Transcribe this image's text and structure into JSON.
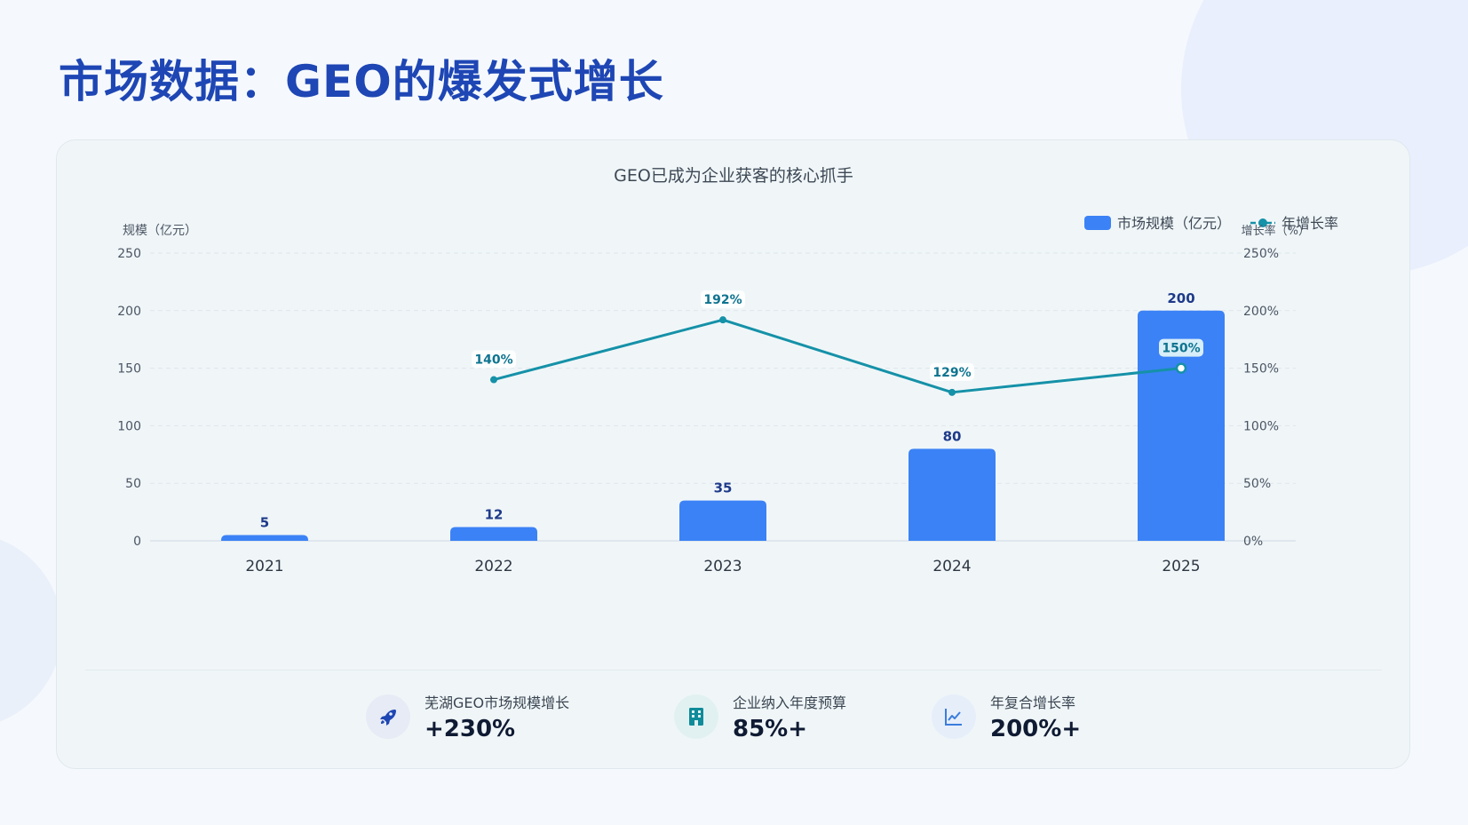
{
  "title": "市场数据：GEO的爆发式增长",
  "colors": {
    "title": "#1e46b4",
    "bar": "#3b82f6",
    "line": "#1591a8",
    "bar_label": "#1e3a8a",
    "line_label": "#0e7490"
  },
  "chart_data": {
    "type": "bar",
    "title": "GEO已成为企业获客的核心抓手",
    "categories": [
      "2021",
      "2022",
      "2023",
      "2024",
      "2025"
    ],
    "ylabel": "规模（亿元）",
    "y2label": "增长率（%）",
    "ylim": [
      0,
      250
    ],
    "y2lim": [
      0,
      250
    ],
    "yticks": [
      "0",
      "50",
      "100",
      "150",
      "200",
      "250"
    ],
    "y2ticks": [
      "0%",
      "50%",
      "100%",
      "150%",
      "200%",
      "250%"
    ],
    "grid": true,
    "legend_position": "top-right",
    "series": [
      {
        "name": "市场规模（亿元）",
        "type": "bar",
        "axis": "left",
        "values": [
          5,
          12,
          35,
          80,
          200
        ],
        "labels": [
          "5",
          "12",
          "35",
          "80",
          "200"
        ]
      },
      {
        "name": "年增长率",
        "type": "line",
        "axis": "right",
        "values": [
          null,
          140,
          192,
          129,
          150
        ],
        "labels": [
          "",
          "140%",
          "192%",
          "129%",
          "150%"
        ]
      }
    ]
  },
  "stats": [
    {
      "icon": "rocket-icon",
      "label": "芜湖GEO市场规模增长",
      "value": "+230%",
      "icon_bg": "#e6ebf5",
      "icon_color": "#1e46b4"
    },
    {
      "icon": "building-icon",
      "label": "企业纳入年度预算",
      "value": "85%+",
      "icon_bg": "#e1f1f1",
      "icon_color": "#0f8b99"
    },
    {
      "icon": "trend-chart-icon",
      "label": "年复合增长率",
      "value": "200%+",
      "icon_bg": "#e6eefa",
      "icon_color": "#3b7ddd"
    }
  ]
}
